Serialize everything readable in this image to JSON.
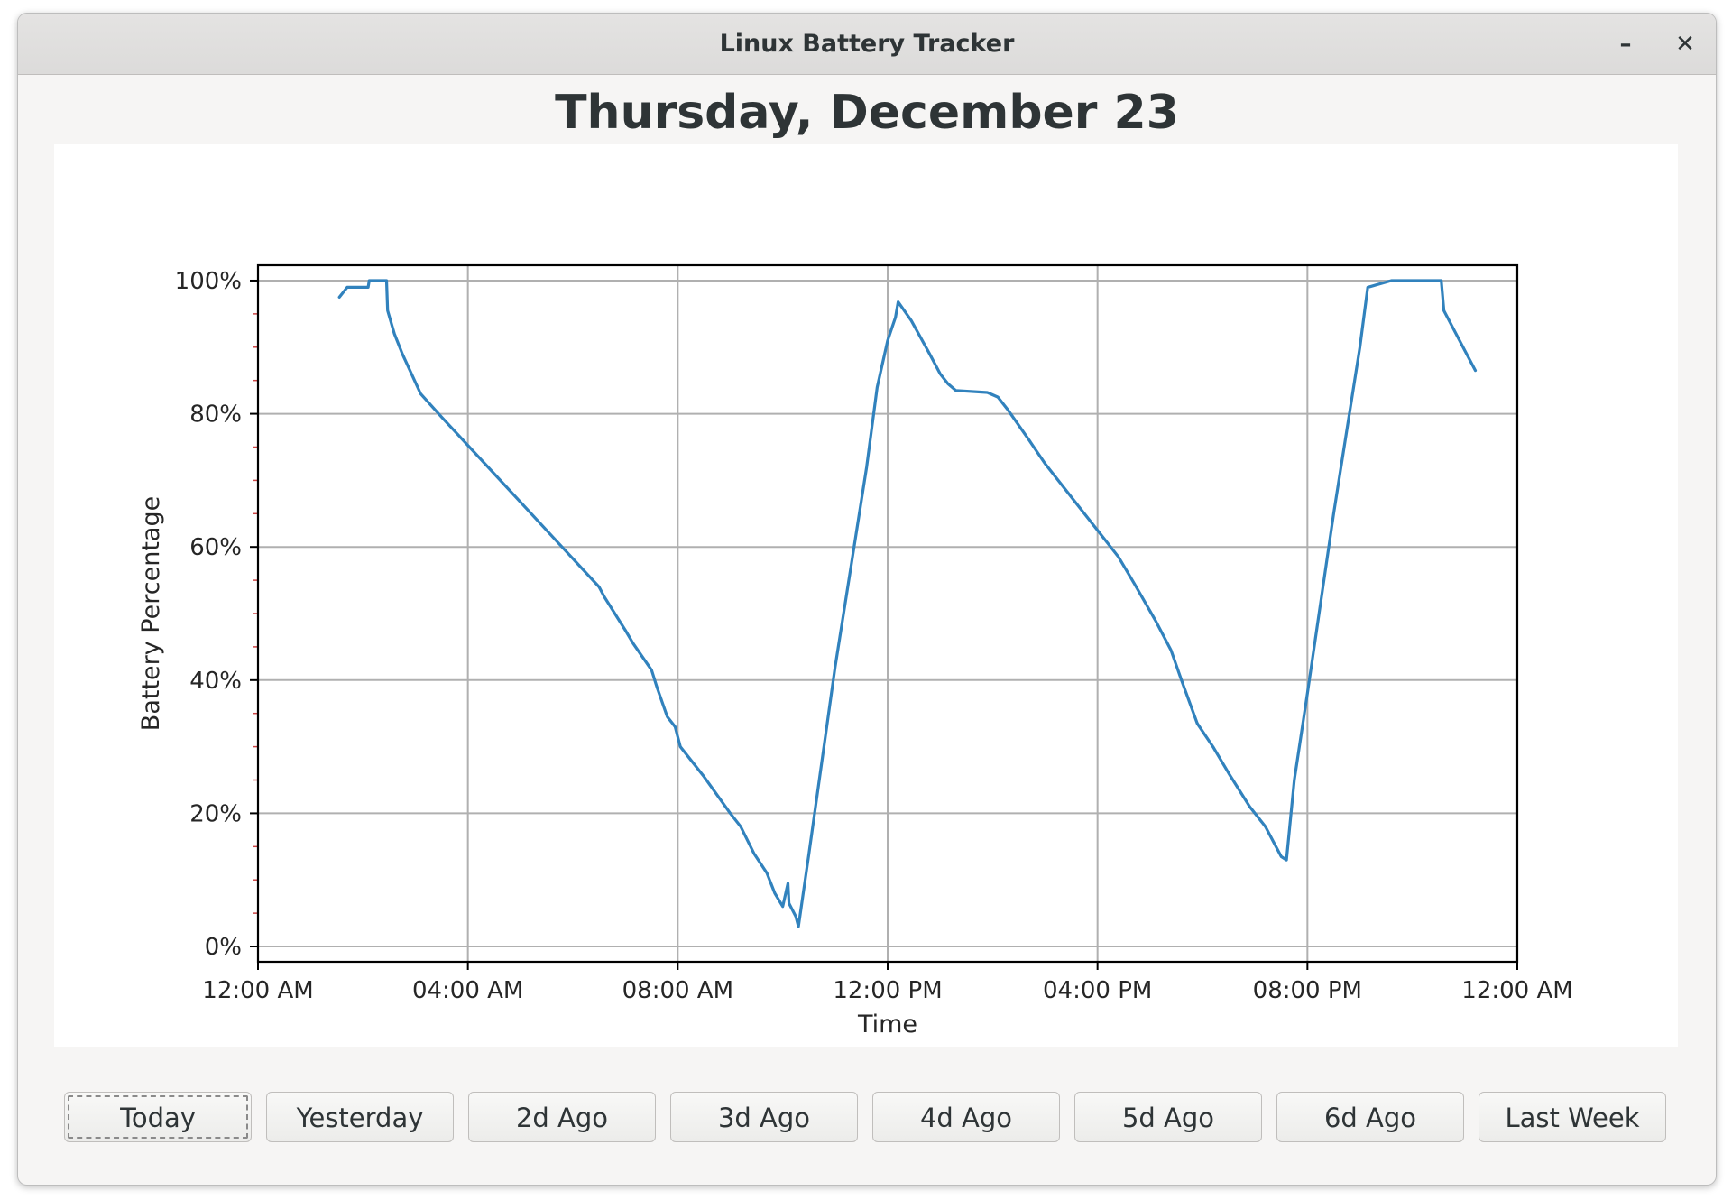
{
  "window": {
    "title": "Linux Battery Tracker",
    "minimize_glyph": "–",
    "close_glyph": "✕"
  },
  "heading": "Thursday, December 23",
  "chart_data": {
    "type": "line",
    "title": "",
    "xlabel": "Time",
    "ylabel": "Battery Percentage",
    "xlim_hours": [
      0,
      24
    ],
    "ylim": [
      0,
      100
    ],
    "grid": true,
    "x_ticks": [
      {
        "hour": 0,
        "label": "12:00 AM"
      },
      {
        "hour": 4,
        "label": "04:00 AM"
      },
      {
        "hour": 8,
        "label": "08:00 AM"
      },
      {
        "hour": 12,
        "label": "12:00 PM"
      },
      {
        "hour": 16,
        "label": "04:00 PM"
      },
      {
        "hour": 20,
        "label": "08:00 PM"
      },
      {
        "hour": 24,
        "label": "12:00 AM"
      }
    ],
    "y_ticks": [
      {
        "value": 0,
        "label": "0%"
      },
      {
        "value": 20,
        "label": "20%"
      },
      {
        "value": 40,
        "label": "40%"
      },
      {
        "value": 60,
        "label": "60%"
      },
      {
        "value": 80,
        "label": "80%"
      },
      {
        "value": 100,
        "label": "100%"
      }
    ],
    "series": [
      {
        "color": "#3182bd",
        "points": [
          [
            1.55,
            97.5
          ],
          [
            1.7,
            99
          ],
          [
            2.1,
            99
          ],
          [
            2.12,
            100
          ],
          [
            2.45,
            100
          ],
          [
            2.47,
            95.5
          ],
          [
            2.6,
            92
          ],
          [
            2.75,
            89
          ],
          [
            3.1,
            83
          ],
          [
            3.5,
            79.5
          ],
          [
            4.5,
            71
          ],
          [
            5.5,
            62.5
          ],
          [
            6.5,
            54
          ],
          [
            6.6,
            52.5
          ],
          [
            7.0,
            47.5
          ],
          [
            7.15,
            45.5
          ],
          [
            7.5,
            41.5
          ],
          [
            7.6,
            39
          ],
          [
            7.8,
            34.5
          ],
          [
            7.95,
            33
          ],
          [
            8.05,
            30
          ],
          [
            8.5,
            25.5
          ],
          [
            9.0,
            20
          ],
          [
            9.2,
            18
          ],
          [
            9.45,
            14
          ],
          [
            9.7,
            11
          ],
          [
            9.85,
            8
          ],
          [
            10.0,
            6
          ],
          [
            10.1,
            9.5
          ],
          [
            10.12,
            6.5
          ],
          [
            10.25,
            4.5
          ],
          [
            10.3,
            3
          ],
          [
            10.5,
            14
          ],
          [
            11.0,
            42
          ],
          [
            11.3,
            57
          ],
          [
            11.6,
            72
          ],
          [
            11.8,
            84
          ],
          [
            12.0,
            91
          ],
          [
            12.15,
            94.5
          ],
          [
            12.2,
            96.8
          ],
          [
            12.45,
            94
          ],
          [
            12.8,
            89
          ],
          [
            13.0,
            86
          ],
          [
            13.15,
            84.5
          ],
          [
            13.3,
            83.5
          ],
          [
            13.9,
            83.2
          ],
          [
            14.1,
            82.5
          ],
          [
            14.3,
            80.5
          ],
          [
            14.7,
            76
          ],
          [
            15.0,
            72.5
          ],
          [
            15.3,
            69.5
          ],
          [
            15.6,
            66.5
          ],
          [
            16.1,
            61.5
          ],
          [
            16.4,
            58.5
          ],
          [
            16.7,
            54.5
          ],
          [
            17.1,
            49
          ],
          [
            17.4,
            44.5
          ],
          [
            17.6,
            40
          ],
          [
            17.9,
            33.5
          ],
          [
            18.2,
            30
          ],
          [
            18.5,
            26
          ],
          [
            18.9,
            21
          ],
          [
            19.2,
            18
          ],
          [
            19.5,
            13.5
          ],
          [
            19.6,
            13
          ],
          [
            19.75,
            25
          ],
          [
            20.0,
            38
          ],
          [
            20.5,
            65
          ],
          [
            21.0,
            90
          ],
          [
            21.15,
            99
          ],
          [
            21.6,
            100
          ],
          [
            22.55,
            100
          ],
          [
            22.6,
            95.5
          ],
          [
            23.0,
            89.5
          ],
          [
            23.2,
            86.5
          ]
        ]
      }
    ]
  },
  "buttons": [
    {
      "label": "Today",
      "focused": true
    },
    {
      "label": "Yesterday",
      "focused": false
    },
    {
      "label": "2d Ago",
      "focused": false
    },
    {
      "label": "3d Ago",
      "focused": false
    },
    {
      "label": "4d Ago",
      "focused": false
    },
    {
      "label": "5d Ago",
      "focused": false
    },
    {
      "label": "6d Ago",
      "focused": false
    },
    {
      "label": "Last Week",
      "focused": false
    }
  ]
}
